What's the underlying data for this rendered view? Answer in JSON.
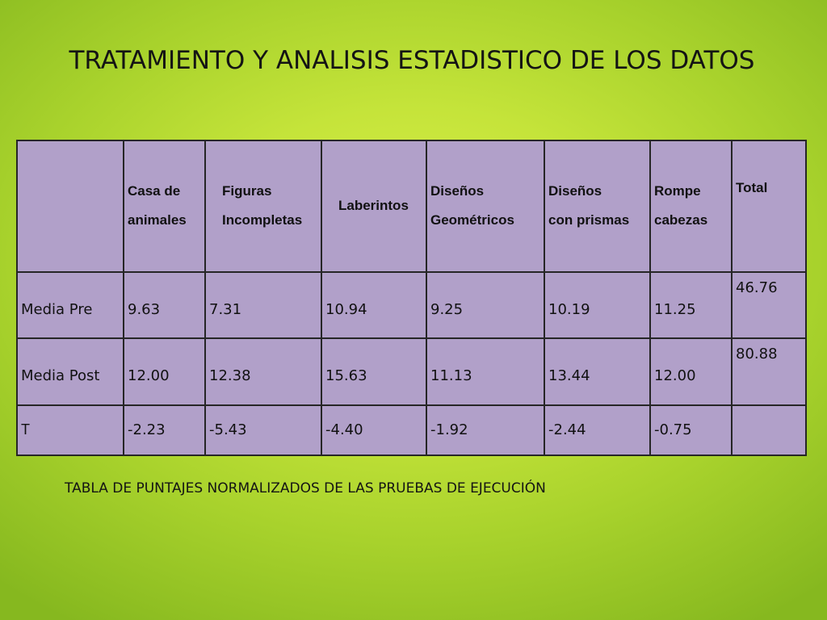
{
  "slide": {
    "title": "TRATAMIENTO Y ANALISIS ESTADISTICO DE LOS DATOS",
    "caption": "TABLA DE PUNTAJES NORMALIZADOS DE LAS PRUEBAS  DE EJECUCIÓN"
  },
  "table": {
    "headers": [
      [
        "Casa de",
        "animales"
      ],
      [
        "Figuras",
        "Incompletas"
      ],
      [
        "Laberintos"
      ],
      [
        "Diseños",
        "Geométricos"
      ],
      [
        "Diseños",
        "con prismas"
      ],
      [
        "Rompe",
        "cabezas"
      ],
      [
        "Total"
      ]
    ],
    "rows": [
      {
        "label": "Media Pre",
        "values": [
          "9.63",
          "7.31",
          "10.94",
          "9.25",
          "10.19",
          "11.25"
        ],
        "total": "46.76"
      },
      {
        "label": "Media Post",
        "values": [
          "12.00",
          "12.38",
          "15.63",
          "11.13",
          "13.44",
          "12.00"
        ],
        "total": "80.88"
      },
      {
        "label": "T",
        "values": [
          "-2.23",
          "-5.43",
          "-4.40",
          "-1.92",
          "-2.44",
          "-0.75"
        ],
        "total": ""
      }
    ]
  },
  "colors": {
    "table_fill": "#b1a0c9",
    "border": "#262626",
    "background": "#c5e43a"
  }
}
